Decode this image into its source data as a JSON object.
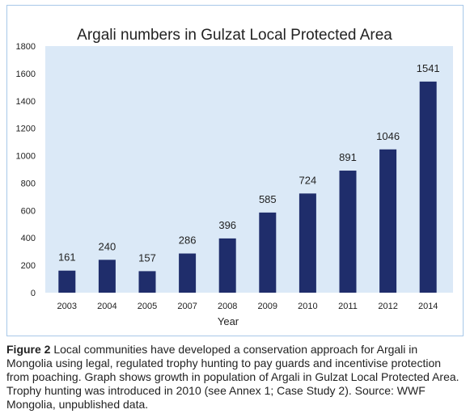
{
  "colors": {
    "bar": "#1f2d6b",
    "plot_bg": "#dbe9f7",
    "frame_border": "#a8c8e8",
    "text": "#222222"
  },
  "chart_data": {
    "type": "bar",
    "title": "Argali numbers in Gulzat Local Protected Area",
    "xlabel": "Year",
    "ylabel": "",
    "categories": [
      "2003",
      "2004",
      "2005",
      "2007",
      "2008",
      "2009",
      "2010",
      "2011",
      "2012",
      "2014"
    ],
    "values": [
      161,
      240,
      157,
      286,
      396,
      585,
      724,
      891,
      1046,
      1541
    ],
    "data_labels": [
      "161",
      "240",
      "157",
      "286",
      "396",
      "585",
      "724",
      "891",
      "1046",
      "1541"
    ],
    "ylim": [
      0,
      1800
    ],
    "yticks": [
      "0",
      "200",
      "400",
      "600",
      "800",
      "1000",
      "1200",
      "1400",
      "1600",
      "1800"
    ],
    "grid": false,
    "legend": "none"
  },
  "caption": {
    "label": "Figure 2",
    "text": "Local communities have developed a conservation approach for Argali in Mongolia using legal, regulated trophy hunting to pay guards and incentivise protection from poaching. Graph shows growth in population of Argali in Gulzat Local Protected Area. Trophy hunting was introduced in 2010 (see Annex 1; Case Study 2).",
    "source": "Source: WWF Mongolia, unpublished data."
  }
}
